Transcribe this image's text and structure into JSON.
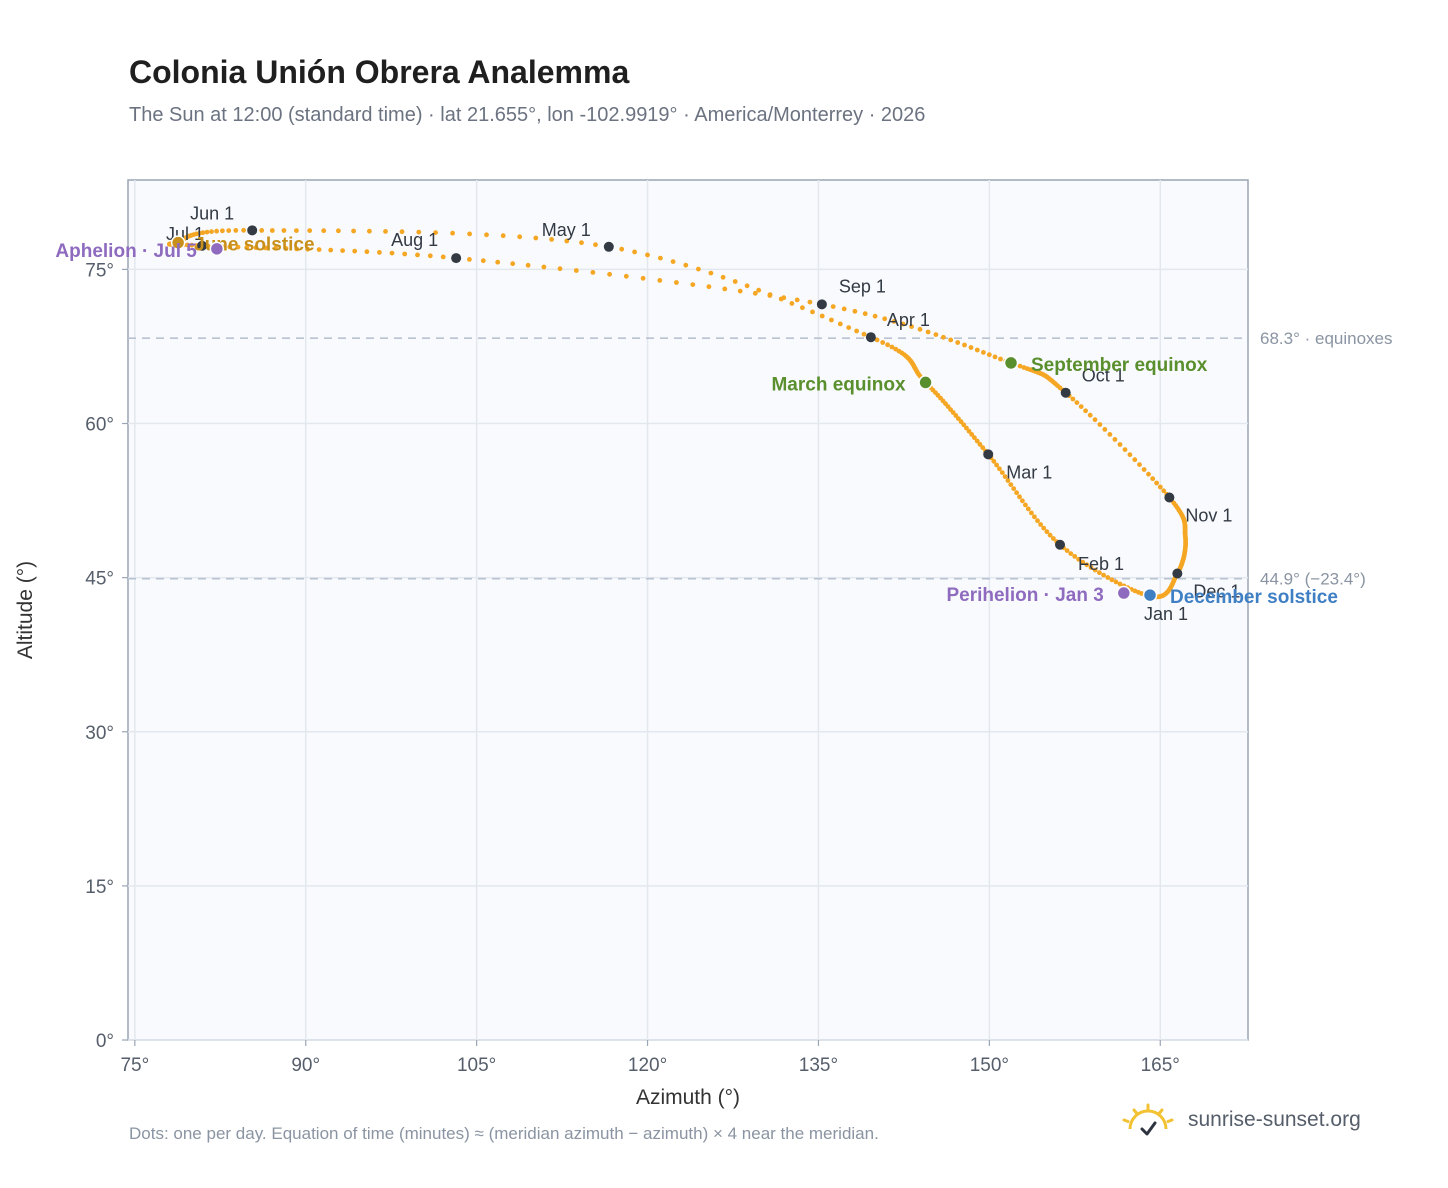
{
  "page": {
    "title": "Colonia Unión Obrera Analemma",
    "subtitle": "The Sun at 12:00 (standard time) · lat 21.655°, lon -102.9919° · America/Monterrey · 2026",
    "footer_note": "Dots: one per day. Equation of time (minutes) ≈ (meridian azimuth − azimuth) × 4 near the meridian.",
    "brand": "sunrise-sunset.org",
    "brand_icon": "sun-logo-icon"
  },
  "chart_data": {
    "type": "scatter",
    "title": "Colonia Unión Obrera Analemma",
    "xlabel": "Azimuth (°)",
    "ylabel": "Altitude (°)",
    "xlim": [
      74.4,
      172.7
    ],
    "ylim": [
      0,
      83.7
    ],
    "xticks": [
      75,
      90,
      105,
      120,
      135,
      150,
      165
    ],
    "yticks": [
      0,
      15,
      30,
      45,
      60,
      75
    ],
    "xtick_labels": [
      "75°",
      "90°",
      "105°",
      "120°",
      "135°",
      "150°",
      "165°"
    ],
    "ytick_labels": [
      "0°",
      "15°",
      "30°",
      "45°",
      "60°",
      "75°"
    ],
    "grid": true,
    "colors": {
      "path": "#f5a623",
      "month_marker": "#333a44",
      "equinox": "#5a8f2e",
      "june_solstice": "#c8901a",
      "december_solstice": "#3f7fc4",
      "apsis": "#8e6bbf",
      "ref_line": "#b8c2d0",
      "plot_bg": "#f8fafd"
    },
    "reference_lines": [
      {
        "y": 68.3,
        "label": "68.3° · equinoxes"
      },
      {
        "y": 44.9,
        "label": "44.9° (−23.4°)"
      }
    ],
    "month_markers": [
      {
        "label": "Jan 1",
        "az": 164.1,
        "alt": 43.2
      },
      {
        "label": "Feb 1",
        "az": 156.2,
        "alt": 48.2
      },
      {
        "label": "Mar 1",
        "az": 149.9,
        "alt": 57.0
      },
      {
        "label": "Apr 1",
        "az": 139.6,
        "alt": 68.4
      },
      {
        "label": "May 1",
        "az": 116.6,
        "alt": 77.2
      },
      {
        "label": "Jun 1",
        "az": 85.3,
        "alt": 78.8
      },
      {
        "label": "Jul 1",
        "az": 80.9,
        "alt": 77.3
      },
      {
        "label": "Aug 1",
        "az": 103.2,
        "alt": 76.1
      },
      {
        "label": "Sep 1",
        "az": 135.3,
        "alt": 71.6
      },
      {
        "label": "Oct 1",
        "az": 156.7,
        "alt": 63.0
      },
      {
        "label": "Nov 1",
        "az": 165.8,
        "alt": 52.8
      },
      {
        "label": "Dec 1",
        "az": 166.5,
        "alt": 45.4
      }
    ],
    "events": [
      {
        "label": "March equinox",
        "az": 144.4,
        "alt": 64.0,
        "color": "#5a8f2e"
      },
      {
        "label": "September equinox",
        "az": 151.9,
        "alt": 65.9,
        "color": "#5a8f2e"
      },
      {
        "label": "June solstice",
        "az": 78.8,
        "alt": 77.6,
        "color": "#c8901a"
      },
      {
        "label": "December solstice",
        "az": 164.1,
        "alt": 43.3,
        "color": "#3f7fc4"
      },
      {
        "label": "Aphelion · Jul 5",
        "az": 82.2,
        "alt": 77.0,
        "color": "#8e6bbf"
      },
      {
        "label": "Perihelion · Jan 3",
        "az": 161.8,
        "alt": 43.5,
        "color": "#8e6bbf"
      }
    ],
    "path_anchors": [
      [
        164.1,
        43.2
      ],
      [
        156.2,
        48.2
      ],
      [
        149.9,
        57.0
      ],
      [
        144.4,
        64.0
      ],
      [
        139.6,
        68.4
      ],
      [
        116.6,
        77.2
      ],
      [
        85.3,
        78.8
      ],
      [
        78.8,
        77.6
      ],
      [
        80.9,
        77.3
      ],
      [
        103.2,
        76.1
      ],
      [
        135.3,
        71.6
      ],
      [
        151.9,
        65.9
      ],
      [
        156.7,
        63.0
      ],
      [
        165.8,
        52.8
      ],
      [
        167.2,
        49.0
      ],
      [
        166.5,
        45.4
      ],
      [
        164.1,
        43.2
      ]
    ]
  }
}
